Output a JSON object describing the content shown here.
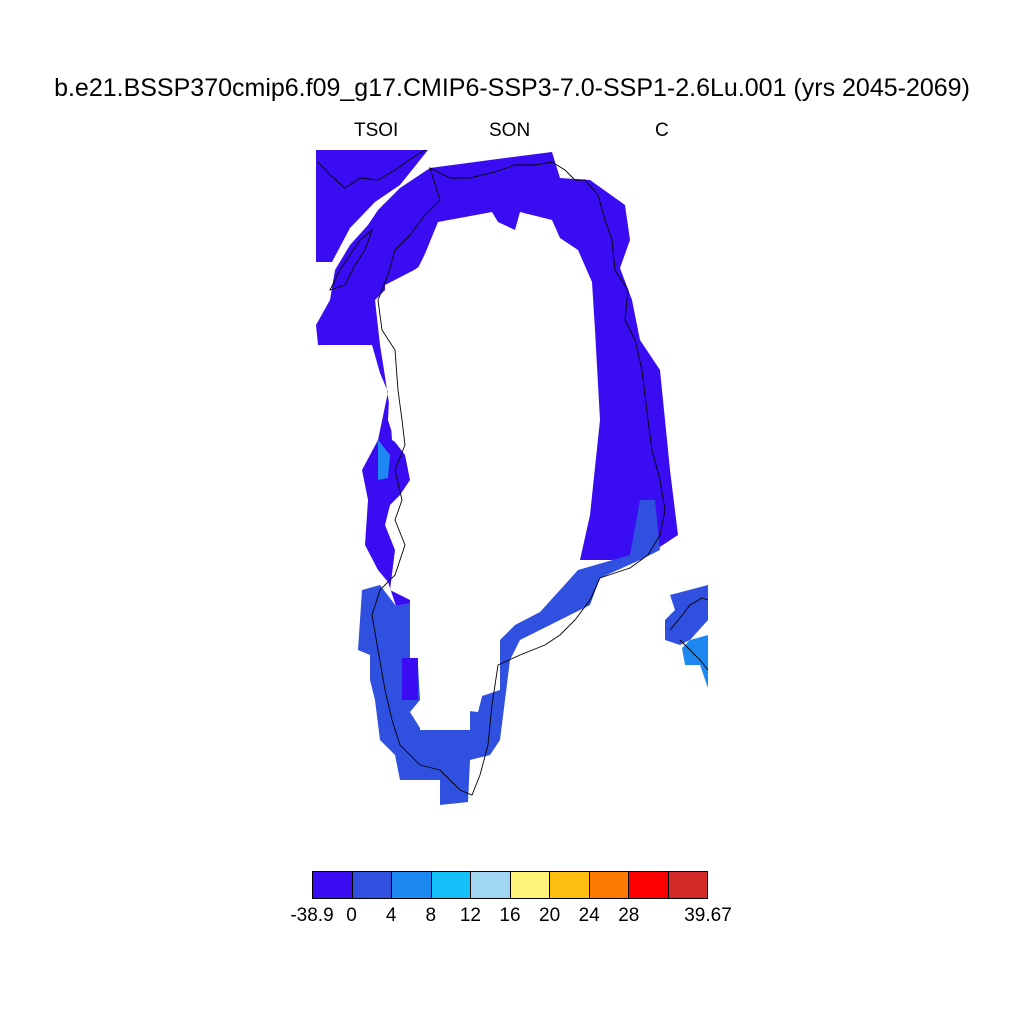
{
  "title": "b.e21.BSSP370cmip6.f09_g17.CMIP6-SSP3-7.0-SSP1-2.6Lu.001 (yrs 2045-2069)",
  "subtitle_left": "TSOI",
  "subtitle_center": "SON",
  "subtitle_right": "C",
  "colorbar": {
    "colors": [
      "#3a0cf2",
      "#3050e0",
      "#1e88f2",
      "#14c0f8",
      "#a0d6f0",
      "#fff37a",
      "#ffbf10",
      "#ff7a00",
      "#ff0000",
      "#d42a2a"
    ],
    "labels": [
      "-38.9",
      "0",
      "4",
      "8",
      "12",
      "16",
      "20",
      "24",
      "28",
      "39.67"
    ]
  },
  "map": {
    "colors": {
      "deep": "#3a0cf2",
      "mid": "#3050e0",
      "light": "#1e88f2",
      "land_interior": "#ffffff",
      "coastline": "#000000"
    }
  }
}
